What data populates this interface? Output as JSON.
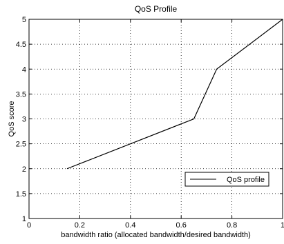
{
  "chart_data": {
    "type": "line",
    "title": "QoS Profile",
    "xlabel": "bandwidth ratio (allocated bandwidth/desired bandwidth)",
    "ylabel": "QoS score",
    "xlim": [
      0,
      1
    ],
    "ylim": [
      1,
      5
    ],
    "xticks": [
      0,
      0.2,
      0.4,
      0.6,
      0.8,
      1
    ],
    "xtick_labels": [
      "0",
      "0.2",
      "0.4",
      "0.6",
      "0.8",
      "1"
    ],
    "yticks": [
      1,
      1.5,
      2,
      2.5,
      3,
      3.5,
      4,
      4.5,
      5
    ],
    "ytick_labels": [
      "1",
      "1.5",
      "2",
      "2.5",
      "3",
      "3.5",
      "4",
      "4.5",
      "5"
    ],
    "grid": true,
    "legend_position": "lower-right",
    "series": [
      {
        "name": "QoS profile",
        "color": "#000000",
        "x": [
          0.15,
          0.65,
          0.74,
          1.0
        ],
        "y": [
          2.0,
          3.0,
          4.0,
          5.0
        ]
      }
    ]
  }
}
